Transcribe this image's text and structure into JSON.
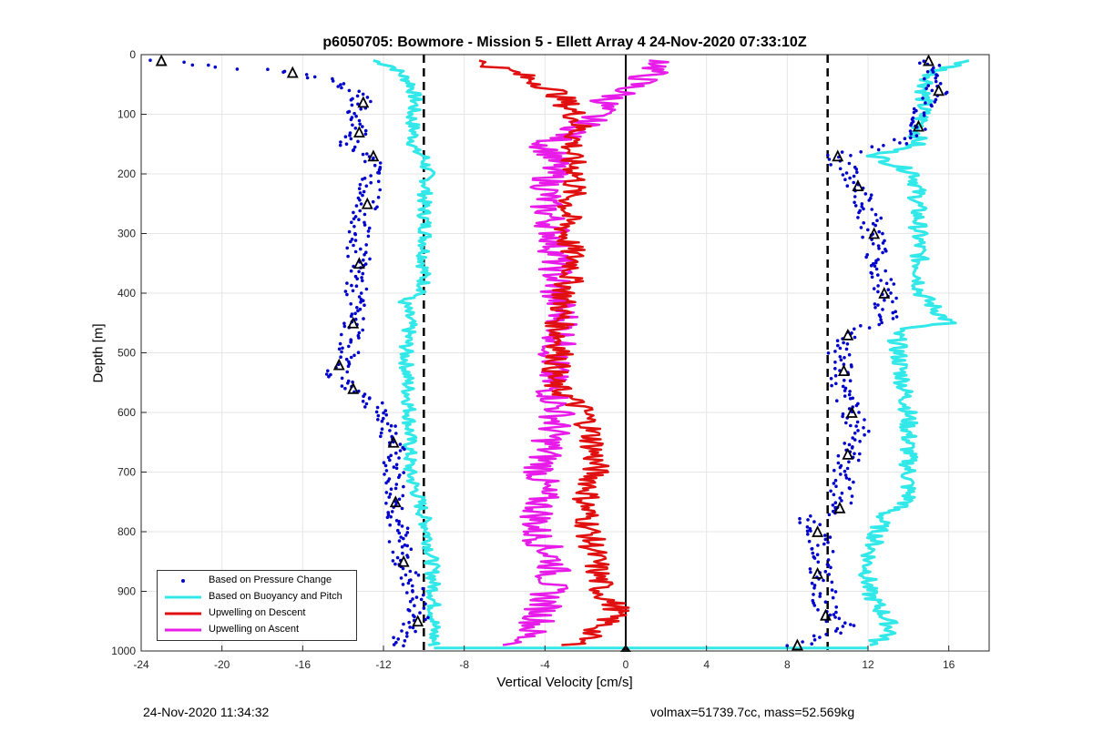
{
  "chart_data": {
    "type": "scatter",
    "title": "p6050705: Bowmore - Mission 5 - Ellett Array 4 24-Nov-2020 07:33:10Z",
    "xlabel": "Vertical Velocity [cm/s]",
    "ylabel": "Depth [m]",
    "xlim": [
      -24,
      18
    ],
    "ylim": [
      0,
      1000
    ],
    "y_reversed": true,
    "grid": true,
    "legend_position": "bottom-left",
    "x_ticks": [
      "-24",
      "-20",
      "-16",
      "-12",
      "-8",
      "-4",
      "0",
      "4",
      "8",
      "12",
      "16"
    ],
    "y_ticks": [
      "0",
      "100",
      "200",
      "300",
      "400",
      "500",
      "600",
      "700",
      "800",
      "900",
      "1000"
    ],
    "reference_lines": [
      {
        "x": -10,
        "style": "dashed",
        "color": "#000000"
      },
      {
        "x": 0,
        "style": "solid",
        "color": "#000000"
      },
      {
        "x": 10,
        "style": "dashed",
        "color": "#000000"
      }
    ],
    "series": [
      {
        "name": "Based on Pressure Change",
        "style": "dots",
        "color": "#0000cc",
        "descent": {
          "depth": [
            10,
            20,
            30,
            50,
            80,
            100,
            130,
            150,
            170,
            200,
            250,
            300,
            350,
            400,
            450,
            500,
            520,
            540,
            560,
            600,
            650,
            700,
            750,
            800,
            850,
            900,
            950,
            990
          ],
          "velocity": [
            -23,
            -20,
            -16.5,
            -14,
            -13,
            -13.5,
            -13.2,
            -13.8,
            -12.5,
            -12.5,
            -12.8,
            -13.3,
            -13.2,
            -13.4,
            -13.5,
            -13.7,
            -14.2,
            -14.3,
            -13.5,
            -12,
            -11.5,
            -11.5,
            -11.4,
            -11.3,
            -11,
            -10.5,
            -10.3,
            -11.5
          ]
        },
        "ascent": {
          "depth": [
            10,
            30,
            60,
            90,
            120,
            150,
            170,
            190,
            220,
            260,
            300,
            350,
            400,
            440,
            470,
            500,
            530,
            560,
            600,
            630,
            670,
            720,
            760,
            780,
            800,
            830,
            870,
            900,
            940,
            960,
            990
          ],
          "velocity": [
            15,
            15.2,
            15.5,
            14.8,
            14.5,
            13.5,
            10.5,
            10.8,
            11.5,
            12,
            12.3,
            12.5,
            12.8,
            13,
            11,
            10.6,
            10.8,
            10.5,
            11.2,
            11.7,
            11,
            10.8,
            10.6,
            9,
            9.5,
            9.8,
            9.5,
            9.8,
            9.9,
            10.8,
            8.5
          ]
        }
      },
      {
        "name": "Based on Buoyancy and Pitch",
        "style": "line",
        "color": "#33e8e8",
        "descent": {
          "depth": [
            10,
            20,
            30,
            50,
            80,
            100,
            130,
            160,
            170,
            200,
            250,
            300,
            350,
            400,
            410,
            450,
            500,
            600,
            700,
            750,
            800,
            850,
            900,
            950,
            990
          ],
          "velocity": [
            -12.5,
            -11.5,
            -11.2,
            -10.6,
            -10.4,
            -10.6,
            -10.5,
            -10.5,
            -10,
            -9.8,
            -10,
            -9.9,
            -10,
            -10,
            -11,
            -10.7,
            -10.9,
            -10.7,
            -10.7,
            -10.2,
            -9.8,
            -9.6,
            -9.5,
            -9.5,
            -9.5
          ]
        },
        "ascent": {
          "depth": [
            10,
            30,
            60,
            100,
            150,
            170,
            180,
            200,
            300,
            400,
            450,
            460,
            500,
            600,
            700,
            750,
            770,
            800,
            850,
            900,
            950,
            970,
            990
          ],
          "velocity": [
            17,
            15.2,
            14.8,
            14.7,
            14.4,
            12.4,
            13,
            14.4,
            14.5,
            14.6,
            16,
            13.4,
            13.5,
            14,
            14,
            14,
            12.8,
            12.5,
            12,
            12,
            13,
            13.2,
            12
          ]
        }
      },
      {
        "name": "Upwelling on Descent",
        "style": "line",
        "color": "#e01010",
        "depth": [
          10,
          30,
          60,
          100,
          120,
          170,
          200,
          250,
          300,
          350,
          400,
          450,
          500,
          550,
          600,
          650,
          700,
          750,
          800,
          850,
          900,
          930,
          960,
          990
        ],
        "velocity": [
          -7.5,
          -5.5,
          -3.5,
          -2.5,
          -2.3,
          -2.8,
          -2.4,
          -2.8,
          -3,
          -2.5,
          -3,
          -3.3,
          -3.2,
          -3.7,
          -2,
          -1.6,
          -1.5,
          -2,
          -1.8,
          -1.5,
          -1.2,
          -0.4,
          -1.2,
          -2.6
        ]
      },
      {
        "name": "Upwelling on Ascent",
        "style": "line",
        "color": "#e81ce8",
        "depth": [
          10,
          50,
          80,
          100,
          130,
          150,
          170,
          200,
          250,
          300,
          350,
          400,
          450,
          500,
          550,
          600,
          650,
          700,
          750,
          800,
          850,
          900,
          950,
          990
        ],
        "velocity": [
          2,
          0.5,
          -1,
          -1.5,
          -2.5,
          -4,
          -3.5,
          -3.7,
          -4,
          -3.5,
          -3.4,
          -3.5,
          -3,
          -3.5,
          -3.8,
          -3.3,
          -3.8,
          -4.2,
          -4.2,
          -4.5,
          -3.5,
          -3.8,
          -4.3,
          -5.3
        ]
      }
    ],
    "footer_left": "24-Nov-2020 11:34:32",
    "footer_right": "volmax=51739.7cc, mass=52.569kg"
  }
}
